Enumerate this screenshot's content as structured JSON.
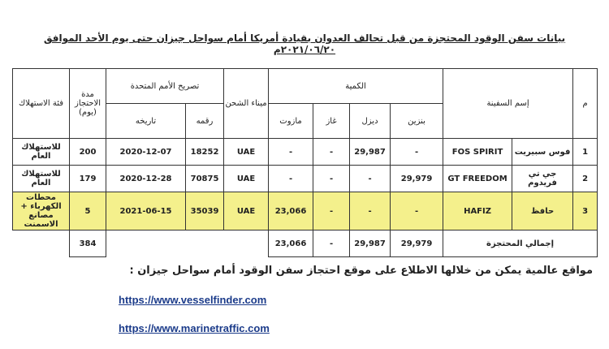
{
  "header": {
    "title": "بيانات سفن الوقود المحتجزة من قبل تحالف العدوان بقيادة أمريكا أمام سواحل جيزان حتى يوم الأحد الموافق ٢٠٢١/٠٦/٢٠م"
  },
  "table": {
    "headers": {
      "index": "م",
      "ship_name": "إسم السفينة",
      "quantity": "الكمية",
      "quantity_types": [
        "بنزين",
        "ديزل",
        "غاز",
        "مازوت"
      ],
      "port": "ميناء الشحن",
      "un_permit": "تصريح الأمم المتحدة",
      "permit_number": "رقمه",
      "permit_date": "تاريخه",
      "duration": "مدة الاحتجاز (يوم)",
      "category": "فئة الاستهلاك"
    },
    "rows": [
      [
        "1",
        "فوس سبيريت",
        "FOS SPIRIT",
        "-",
        "29,987",
        "-",
        "-",
        "UAE",
        "18252",
        "2020-12-07",
        "200",
        "للاستهلاك العام"
      ],
      [
        "2",
        "جي تي فريدوم",
        "GT FREEDOM",
        "29,979",
        "-",
        "-",
        "-",
        "UAE",
        "70875",
        "2020-12-28",
        "179",
        "للاستهلاك العام"
      ],
      [
        "3",
        "حافظ",
        "HAFIZ",
        "-",
        "-",
        "-",
        "23,066",
        "UAE",
        "35039",
        "2021-06-15",
        "5",
        "محطات الكهرباء + مصانع الاسمنت"
      ]
    ],
    "total": {
      "label": "إجمالي المحتجزة",
      "values": [
        "29,979",
        "29,987",
        "-",
        "23,066"
      ],
      "duration": "384"
    }
  },
  "footer": {
    "text": "مواقع عالمية يمكن من خلالها الاطلاع على موقع احتجاز سفن الوقود أمام سواحل جيزان :",
    "links": [
      "https://www.vesselfinder.com",
      "https://www.marinetraffic.com"
    ]
  }
}
